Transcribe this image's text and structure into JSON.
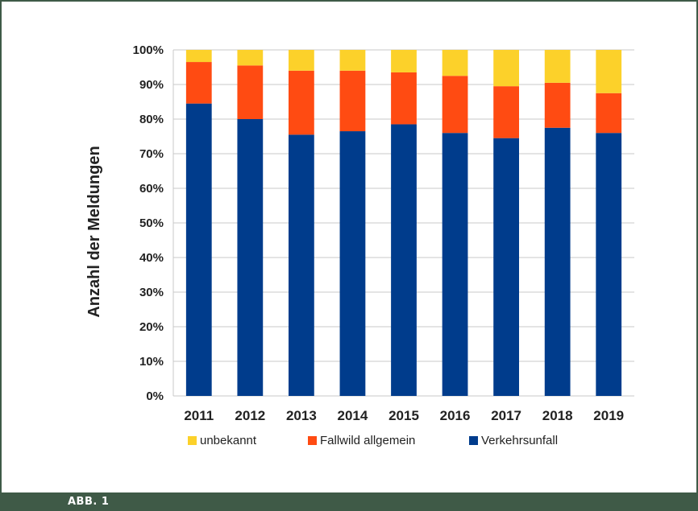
{
  "figure_label": "ABB. 1",
  "colors": {
    "unbekannt": "#fcd12a",
    "fallwild": "#ff4b12",
    "verkehrsunfall": "#003c8c",
    "grid": "#c8c8c8",
    "frame": "#3f5a47"
  },
  "chart_data": {
    "type": "bar",
    "stacked": true,
    "ylabel": "Anzahl der Meldungen",
    "xlabel": "",
    "ylim": [
      0,
      100
    ],
    "yticks": [
      "0%",
      "10%",
      "20%",
      "30%",
      "40%",
      "50%",
      "60%",
      "70%",
      "80%",
      "90%",
      "100%"
    ],
    "categories": [
      "2011",
      "2012",
      "2013",
      "2014",
      "2015",
      "2016",
      "2017",
      "2018",
      "2019"
    ],
    "series": [
      {
        "name": "Verkehrsunfall",
        "values": [
          84.5,
          80,
          75.5,
          76.5,
          78.5,
          76,
          74.5,
          77.5,
          76
        ]
      },
      {
        "name": "Fallwild allgemein",
        "values": [
          12,
          15.5,
          18.5,
          17.5,
          15,
          16.5,
          15,
          13,
          11.5
        ]
      },
      {
        "name": "unbekannt",
        "values": [
          3.5,
          4.5,
          6,
          6,
          6.5,
          7.5,
          10.5,
          9.5,
          12.5
        ]
      }
    ],
    "legend": {
      "position": "bottom",
      "entries": [
        "unbekannt",
        "Fallwild allgemein",
        "Verkehrsunfall"
      ]
    },
    "grid": true
  }
}
